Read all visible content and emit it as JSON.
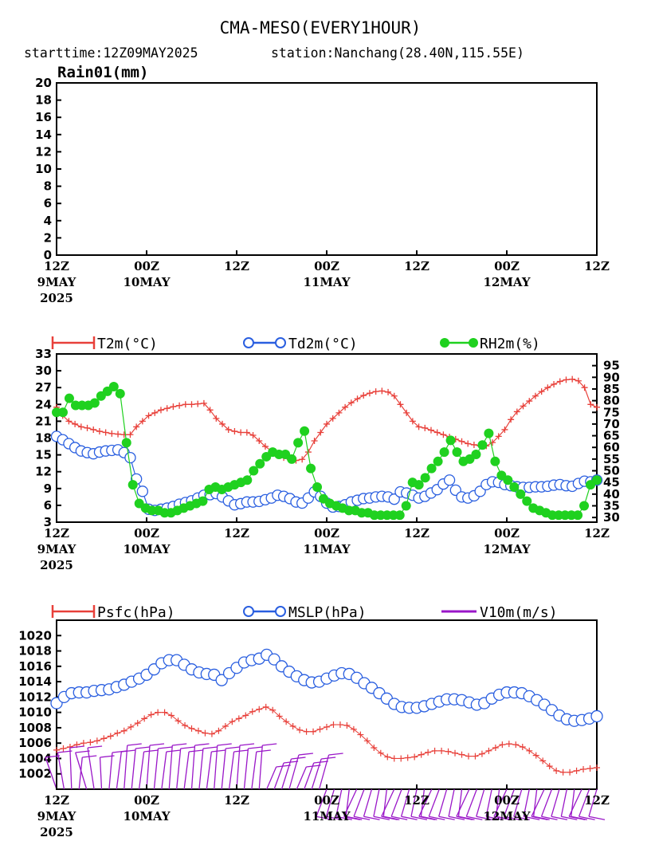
{
  "header": {
    "title": "CMA-MESO(EVERY1HOUR)",
    "subtitle_start": "starttime:12Z09MAY2025",
    "subtitle_station": "station:Nanchang(28.40N,115.55E)"
  },
  "colors": {
    "t2m": "#e8403a",
    "td2m": "#2a5fe0",
    "rh2m": "#1fd11f",
    "psfc": "#e8403a",
    "mslp": "#2a5fe0",
    "v10m": "#9a17c8"
  },
  "x_axis": {
    "ticks": [
      {
        "hour": "12Z",
        "day": "9MAY",
        "year": "2025"
      },
      {
        "hour": "00Z",
        "day": "10MAY",
        "year": ""
      },
      {
        "hour": "12Z",
        "day": "",
        "year": ""
      },
      {
        "hour": "00Z",
        "day": "11MAY",
        "year": ""
      },
      {
        "hour": "12Z",
        "day": "",
        "year": ""
      },
      {
        "hour": "00Z",
        "day": "12MAY",
        "year": ""
      },
      {
        "hour": "12Z",
        "day": "",
        "year": ""
      }
    ]
  },
  "chart_data": [
    {
      "type": "line",
      "label": "Rain01(mm)",
      "ylim": [
        0,
        20
      ],
      "yticks": [
        "0",
        "2",
        "4",
        "6",
        "8",
        "10",
        "12",
        "14",
        "16",
        "18",
        "20"
      ],
      "x_hours": [
        0,
        72
      ],
      "series": []
    },
    {
      "type": "line",
      "legend": [
        "T2m(°C)",
        "Td2m(°C)",
        "RH2m(%)"
      ],
      "ylim_left": [
        3,
        33
      ],
      "yticks_left": [
        "3",
        "6",
        "9",
        "12",
        "15",
        "18",
        "21",
        "24",
        "27",
        "30",
        "33"
      ],
      "ylim_right": [
        28,
        100
      ],
      "yticks_right": [
        "30",
        "35",
        "40",
        "45",
        "50",
        "55",
        "60",
        "65",
        "70",
        "75",
        "80",
        "85",
        "90",
        "95"
      ],
      "series": [
        {
          "name": "T2m(°C)",
          "axis": "left",
          "values": [
            23.5,
            22,
            21,
            20.5,
            20,
            19.8,
            19.5,
            19.2,
            19,
            18.8,
            18.7,
            18.6,
            18.6,
            20,
            21,
            22,
            22.5,
            23,
            23.3,
            23.6,
            23.8,
            24,
            24,
            24.1,
            24.2,
            23,
            21.5,
            20.5,
            19.5,
            19.2,
            19,
            19,
            18.5,
            17.5,
            16.5,
            15.7,
            15,
            14.5,
            14.2,
            14,
            14.2,
            15.5,
            17.5,
            19,
            20.5,
            21.5,
            22.5,
            23.5,
            24.3,
            25,
            25.6,
            26,
            26.3,
            26.4,
            26.2,
            25.5,
            24,
            22.5,
            21,
            20,
            19.8,
            19.4,
            19,
            18.6,
            18.2,
            17.8,
            17.4,
            17,
            16.8,
            16.6,
            16.6,
            17.2,
            18.3,
            19.5,
            21.3,
            22.7,
            23.7,
            24.6,
            25.5,
            26.3,
            27,
            27.6,
            28.1,
            28.4,
            28.5,
            28.2,
            27,
            24,
            23.5
          ]
        },
        {
          "name": "Td2m(°C)",
          "axis": "left",
          "values": [
            18.3,
            17.7,
            17,
            16.3,
            15.7,
            15.4,
            15.2,
            15.5,
            15.7,
            15.8,
            15.9,
            15.4,
            14.5,
            10.7,
            8.5,
            5.3,
            5.1,
            5.3,
            5.5,
            5.8,
            6.2,
            6.5,
            6.8,
            7.3,
            7.8,
            7.9,
            8.1,
            7.5,
            6.8,
            6.1,
            6.3,
            6.6,
            6.6,
            6.7,
            7,
            7.3,
            7.8,
            7.6,
            7.2,
            6.6,
            6.4,
            7.3,
            8.4,
            7.6,
            6.4,
            5.7,
            5.8,
            6.1,
            6.6,
            6.9,
            7.2,
            7.3,
            7.5,
            7.6,
            7.5,
            7.1,
            8.4,
            8.2,
            7.8,
            7.3,
            7.6,
            8.2,
            8.8,
            9.8,
            10.5,
            8.7,
            7.5,
            7.3,
            7.7,
            8.5,
            9.7,
            10.2,
            10.1,
            9.7,
            9.5,
            9.3,
            9.2,
            9.2,
            9.3,
            9.3,
            9.4,
            9.6,
            9.7,
            9.5,
            9.4,
            9.9,
            10.3,
            10.2,
            10.5
          ]
        },
        {
          "name": "RH2m(%)",
          "axis": "right",
          "values": [
            75,
            75,
            81,
            78,
            78,
            78,
            79,
            82,
            84,
            86,
            83,
            62,
            44,
            36,
            34,
            33,
            33,
            32,
            32,
            33,
            34,
            35,
            36,
            37,
            42,
            43,
            42,
            43,
            44,
            45,
            46,
            50,
            53,
            56,
            58,
            57,
            57,
            55,
            62,
            67,
            51,
            43,
            38,
            36,
            35,
            34,
            33,
            33,
            32,
            32,
            31,
            31,
            31,
            31,
            31,
            35,
            45,
            44,
            47,
            51,
            54,
            58,
            63,
            58,
            54,
            55,
            57,
            61,
            66,
            54,
            48,
            46,
            43,
            40,
            37,
            34,
            33,
            32,
            31,
            31,
            31,
            31,
            31,
            35,
            44,
            46
          ]
        },
        {
          "name": "Psfc(hPa)",
          "axis": "left",
          "panel": 3,
          "values": []
        }
      ]
    },
    {
      "type": "line",
      "legend": [
        "Psfc(hPa)",
        "MSLP(hPa)",
        "V10m(m/s)"
      ],
      "ylim": [
        1000,
        1022
      ],
      "yticks": [
        "1002",
        "1004",
        "1006",
        "1008",
        "1010",
        "1012",
        "1014",
        "1016",
        "1018",
        "1020"
      ],
      "series": [
        {
          "name": "Psfc(hPa)",
          "values": [
            1005.1,
            1005.3,
            1005.5,
            1005.8,
            1006.0,
            1006.1,
            1006.3,
            1006.6,
            1006.9,
            1007.3,
            1007.6,
            1008.1,
            1008.6,
            1009.2,
            1009.7,
            1010.0,
            1010.0,
            1009.6,
            1008.9,
            1008.3,
            1007.9,
            1007.6,
            1007.3,
            1007.2,
            1007.6,
            1008.2,
            1008.8,
            1009.2,
            1009.6,
            1010.1,
            1010.4,
            1010.7,
            1010.3,
            1009.5,
            1008.8,
            1008.2,
            1007.7,
            1007.5,
            1007.5,
            1007.8,
            1008.1,
            1008.4,
            1008.4,
            1008.3,
            1007.8,
            1007.1,
            1006.3,
            1005.4,
            1004.7,
            1004.2,
            1004.0,
            1004.0,
            1004.1,
            1004.2,
            1004.5,
            1004.8,
            1005.0,
            1005.0,
            1004.9,
            1004.7,
            1004.5,
            1004.3,
            1004.3,
            1004.6,
            1005.0,
            1005.4,
            1005.8,
            1005.9,
            1005.8,
            1005.5,
            1005.0,
            1004.4,
            1003.7,
            1003.0,
            1002.4,
            1002.2,
            1002.2,
            1002.4,
            1002.6,
            1002.7,
            1002.8
          ]
        },
        {
          "name": "MSLP(hPa)",
          "values": [
            1011.2,
            1012.0,
            1012.5,
            1012.6,
            1012.6,
            1012.8,
            1012.9,
            1013.0,
            1013.3,
            1013.6,
            1014.0,
            1014.4,
            1014.9,
            1015.6,
            1016.4,
            1016.8,
            1016.8,
            1016.2,
            1015.6,
            1015.2,
            1015.0,
            1014.9,
            1014.2,
            1015.1,
            1015.8,
            1016.5,
            1016.8,
            1017.0,
            1017.5,
            1016.9,
            1016.0,
            1015.3,
            1014.7,
            1014.2,
            1013.9,
            1014.0,
            1014.4,
            1014.8,
            1015.1,
            1015.0,
            1014.5,
            1013.8,
            1013.2,
            1012.5,
            1011.8,
            1011.1,
            1010.7,
            1010.6,
            1010.6,
            1010.8,
            1011.1,
            1011.4,
            1011.7,
            1011.7,
            1011.6,
            1011.3,
            1011.0,
            1011.2,
            1011.8,
            1012.3,
            1012.6,
            1012.6,
            1012.5,
            1012.1,
            1011.6,
            1011.0,
            1010.3,
            1009.6,
            1009.1,
            1008.9,
            1009.0,
            1009.2,
            1009.5
          ]
        },
        {
          "name": "V10m(m/s)",
          "style": "wind-barbs"
        }
      ]
    }
  ]
}
